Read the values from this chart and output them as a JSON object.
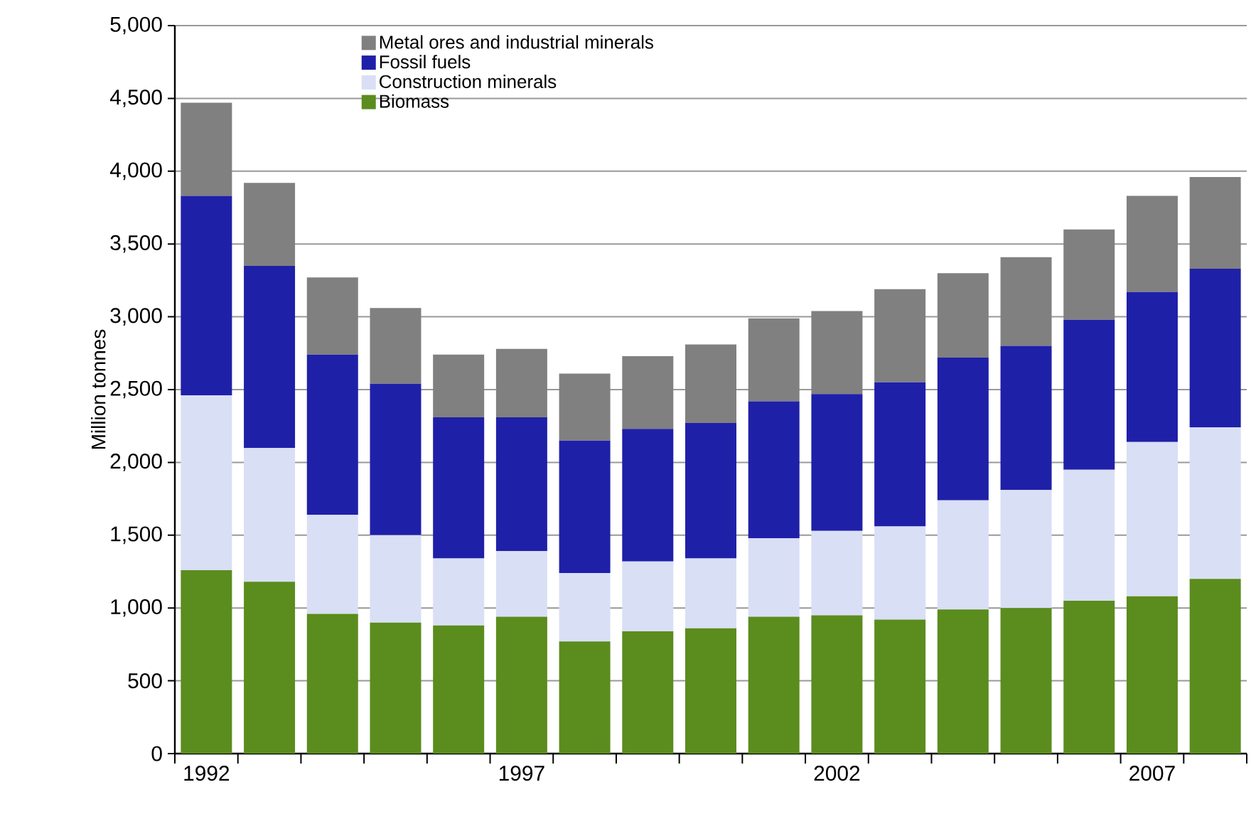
{
  "chart_data": {
    "type": "bar",
    "stacked": true,
    "ylabel": "Million tonnes",
    "categories": [
      "1992",
      null,
      null,
      null,
      null,
      "1997",
      null,
      null,
      null,
      null,
      "2002",
      null,
      null,
      null,
      null,
      "2007",
      null
    ],
    "series": [
      {
        "name": "Biomass",
        "color": "#5b8c1e",
        "values": [
          1260,
          1180,
          960,
          900,
          880,
          940,
          770,
          840,
          860,
          940,
          950,
          920,
          990,
          1000,
          1050,
          1080,
          1200
        ]
      },
      {
        "name": "Construction minerals",
        "color": "#d9dff5",
        "values": [
          1200,
          920,
          680,
          600,
          460,
          450,
          470,
          480,
          480,
          540,
          580,
          640,
          750,
          810,
          900,
          1060,
          1040
        ]
      },
      {
        "name": "Fossil fuels",
        "color": "#1f20a8",
        "values": [
          1370,
          1250,
          1100,
          1040,
          970,
          920,
          910,
          910,
          930,
          940,
          940,
          990,
          980,
          990,
          1030,
          1030,
          1090
        ]
      },
      {
        "name": "Metal ores and industrial minerals",
        "color": "#808080",
        "values": [
          640,
          570,
          530,
          520,
          430,
          470,
          460,
          500,
          540,
          570,
          570,
          640,
          580,
          610,
          620,
          660,
          630
        ]
      }
    ],
    "ylim": [
      0,
      5000
    ],
    "yticks": [
      {
        "value": 0,
        "label": "0"
      },
      {
        "value": 500,
        "label": "500"
      },
      {
        "value": 1000,
        "label": "1,000"
      },
      {
        "value": 1500,
        "label": "1,500"
      },
      {
        "value": 2000,
        "label": "2,000"
      },
      {
        "value": 2500,
        "label": "2,500"
      },
      {
        "value": 3000,
        "label": "3,000"
      },
      {
        "value": 3500,
        "label": "3,500"
      },
      {
        "value": 4000,
        "label": "4,000"
      },
      {
        "value": 4500,
        "label": "4,500"
      },
      {
        "value": 5000,
        "label": "5,000"
      }
    ],
    "grid": "y",
    "legend": "top"
  }
}
